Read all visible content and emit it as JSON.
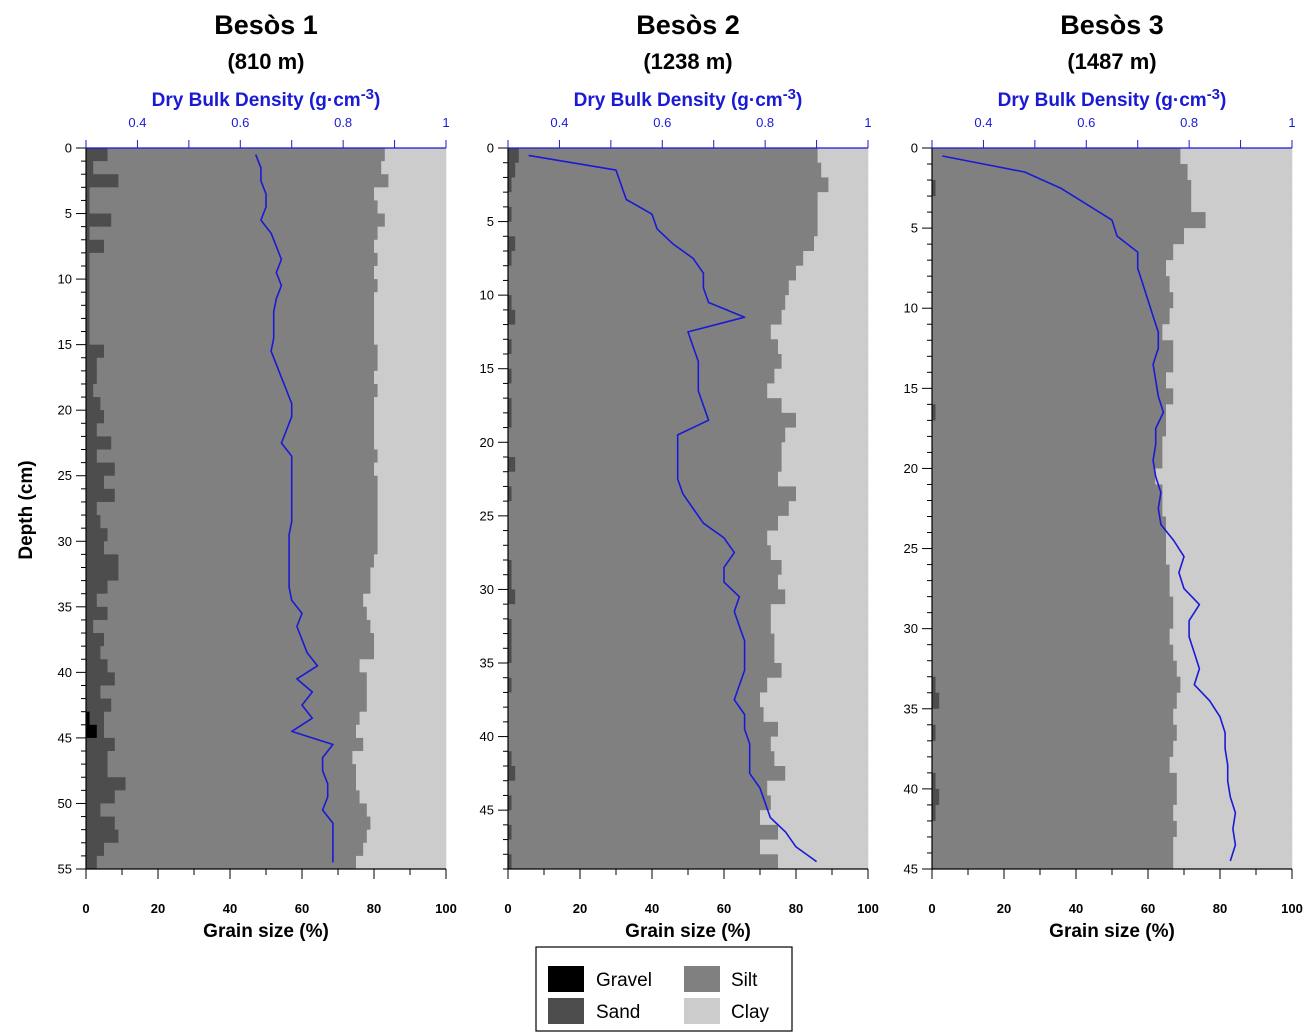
{
  "colors": {
    "gravel": "#000000",
    "sand": "#4d4d4d",
    "silt": "#808080",
    "clay": "#cccccc",
    "dbd": "#1a1ad6"
  },
  "legend": {
    "gravel": "Gravel",
    "sand": "Sand",
    "silt": "Silt",
    "clay": "Clay"
  },
  "chart_data": [
    {
      "type": "area",
      "title": "Besòs 1",
      "subtitle": "(810 m)",
      "ylabel": "Depth (cm)",
      "xlabel": "Grain size (%)",
      "x2label": "Dry Bulk Density (g·cm",
      "x2label_sup": "-3",
      "x2label_close": ")",
      "ylim": [
        0,
        55
      ],
      "xlim": [
        0,
        100
      ],
      "x2lim": [
        0.3,
        1.0
      ],
      "x2ticks": [
        0.4,
        0.6,
        0.8,
        1
      ],
      "x2ticklabels": [
        "0.4",
        "0.6",
        "0.8",
        "1"
      ],
      "xticks": [
        0,
        20,
        40,
        60,
        80,
        100
      ],
      "yticks": [
        0,
        5,
        10,
        15,
        20,
        25,
        30,
        35,
        40,
        45,
        50,
        55
      ],
      "grain_size": {
        "depth": [
          0.5,
          1.5,
          2.5,
          3.5,
          4.5,
          5.5,
          6.5,
          7.5,
          8.5,
          9.5,
          10.5,
          11.5,
          12.5,
          13.5,
          14.5,
          15.5,
          16.5,
          17.5,
          18.5,
          19.5,
          20.5,
          21.5,
          22.5,
          23.5,
          24.5,
          25.5,
          26.5,
          27.5,
          28.5,
          29.5,
          30.5,
          31.5,
          32.5,
          33.5,
          34.5,
          35.5,
          36.5,
          37.5,
          38.5,
          39.5,
          40.5,
          41.5,
          42.5,
          43.5,
          44.5,
          45.5,
          46.5,
          47.5,
          48.5,
          49.5,
          50.5,
          51.5,
          52.5,
          53.5,
          54.5
        ],
        "gravel": [
          0,
          0,
          0,
          0,
          0,
          0,
          0,
          0,
          0,
          0,
          0,
          0,
          0,
          0,
          0,
          0,
          0,
          0,
          0,
          0,
          0,
          0,
          0,
          0,
          0,
          0,
          0,
          0,
          0,
          0,
          0,
          0,
          0,
          0,
          0,
          0,
          0,
          0,
          0,
          0,
          0,
          0,
          0,
          1,
          3,
          0,
          0,
          0,
          0,
          0,
          0,
          0,
          0,
          0,
          0
        ],
        "sand": [
          6,
          2,
          9,
          1,
          1,
          7,
          1,
          5,
          1,
          1,
          1,
          1,
          1,
          1,
          1,
          5,
          3,
          3,
          2,
          4,
          5,
          3,
          7,
          3,
          8,
          5,
          8,
          3,
          4,
          6,
          5,
          9,
          9,
          6,
          3,
          6,
          2,
          5,
          4,
          6,
          8,
          4,
          7,
          4,
          2,
          8,
          6,
          6,
          11,
          8,
          4,
          8,
          9,
          5,
          3
        ],
        "silt": [
          77,
          80,
          75,
          79,
          80,
          76,
          80,
          75,
          80,
          79,
          80,
          79,
          79,
          79,
          79,
          76,
          78,
          77,
          79,
          76,
          75,
          77,
          73,
          78,
          72,
          76,
          73,
          78,
          77,
          75,
          76,
          71,
          70,
          73,
          74,
          72,
          77,
          75,
          76,
          70,
          70,
          74,
          71,
          71,
          70,
          69,
          68,
          69,
          64,
          68,
          74,
          71,
          69,
          72,
          72
        ],
        "clay": [
          17,
          18,
          16,
          20,
          19,
          17,
          19,
          20,
          19,
          20,
          19,
          20,
          20,
          20,
          20,
          19,
          19,
          20,
          19,
          20,
          20,
          20,
          20,
          19,
          20,
          19,
          19,
          19,
          19,
          19,
          19,
          20,
          21,
          21,
          23,
          22,
          21,
          20,
          20,
          24,
          22,
          22,
          22,
          24,
          25,
          23,
          26,
          25,
          25,
          24,
          22,
          21,
          22,
          23,
          25
        ]
      },
      "dry_bulk_density": {
        "depth": [
          0.5,
          1.5,
          2.5,
          3.5,
          4.5,
          5.5,
          6.5,
          7.5,
          8.5,
          9.5,
          10.5,
          11.5,
          12.5,
          13.5,
          14.5,
          15.5,
          16.5,
          17.5,
          18.5,
          19.5,
          20.5,
          21.5,
          22.5,
          23.5,
          24.5,
          25.5,
          26.5,
          27.5,
          28.5,
          29.5,
          30.5,
          31.5,
          32.5,
          33.5,
          34.5,
          35.5,
          36.5,
          37.5,
          38.5,
          39.5,
          40.5,
          41.5,
          42.5,
          43.5,
          44.5,
          45.5,
          46.5,
          47.5,
          48.5,
          49.5,
          50.5,
          51.5,
          52.5,
          53.5,
          54.5
        ],
        "values": [
          0.63,
          0.64,
          0.64,
          0.65,
          0.65,
          0.64,
          0.66,
          0.67,
          0.68,
          0.67,
          0.68,
          0.67,
          0.665,
          0.665,
          0.665,
          0.66,
          0.67,
          0.68,
          0.69,
          0.7,
          0.7,
          0.69,
          0.68,
          0.7,
          0.7,
          0.7,
          0.7,
          0.7,
          0.7,
          0.695,
          0.695,
          0.695,
          0.695,
          0.695,
          0.7,
          0.72,
          0.71,
          0.72,
          0.73,
          0.75,
          0.71,
          0.74,
          0.72,
          0.74,
          0.7,
          0.78,
          0.76,
          0.76,
          0.77,
          0.77,
          0.76,
          0.78,
          0.78,
          0.78,
          0.78
        ]
      }
    },
    {
      "type": "area",
      "title": "Besòs 2",
      "subtitle": "(1238 m)",
      "ylabel": "",
      "xlabel": "Grain size (%)",
      "x2label": "Dry Bulk Density (g·cm",
      "x2label_sup": "-3",
      "x2label_close": ")",
      "ylim": [
        0,
        49
      ],
      "xlim": [
        0,
        100
      ],
      "x2lim": [
        0.3,
        1.0
      ],
      "x2ticks": [
        0.4,
        0.6,
        0.8,
        1
      ],
      "x2ticklabels": [
        "0.4",
        "0.6",
        "0.8",
        "1"
      ],
      "xticks": [
        0,
        20,
        40,
        60,
        80,
        100
      ],
      "yticks": [
        0,
        5,
        10,
        15,
        20,
        25,
        30,
        35,
        40,
        45
      ],
      "grain_size": {
        "depth": [
          0.5,
          1.5,
          2.5,
          3.5,
          4.5,
          5.5,
          6.5,
          7.5,
          8.5,
          9.5,
          10.5,
          11.5,
          12.5,
          13.5,
          14.5,
          15.5,
          16.5,
          17.5,
          18.5,
          19.5,
          20.5,
          21.5,
          22.5,
          23.5,
          24.5,
          25.5,
          26.5,
          27.5,
          28.5,
          29.5,
          30.5,
          31.5,
          32.5,
          33.5,
          34.5,
          35.5,
          36.5,
          37.5,
          38.5,
          39.5,
          40.5,
          41.5,
          42.5,
          43.5,
          44.5,
          45.5,
          46.5,
          47.5,
          48.5
        ],
        "gravel": [
          0,
          0,
          0,
          0,
          0,
          0,
          0,
          0,
          0,
          0,
          0,
          0,
          0,
          0,
          0,
          0,
          0,
          0,
          0,
          0,
          0,
          0,
          0,
          0,
          0,
          0,
          0,
          0,
          0,
          0,
          0,
          0,
          0,
          0,
          0,
          0,
          0,
          0,
          0,
          0,
          0,
          0,
          0,
          0,
          0,
          0,
          0,
          0,
          0
        ],
        "sand": [
          3,
          2,
          1,
          0,
          1,
          0,
          2,
          1,
          0,
          0,
          1,
          2,
          0,
          1,
          0,
          1,
          0,
          1,
          1,
          0,
          0,
          2,
          0,
          1,
          0,
          0,
          0,
          0,
          1,
          1,
          2,
          0,
          1,
          1,
          1,
          0,
          1,
          0,
          0,
          0,
          0,
          1,
          2,
          0,
          1,
          0,
          1,
          0,
          1
        ],
        "silt": [
          83,
          85,
          88,
          86,
          85,
          86,
          83,
          81,
          80,
          78,
          76,
          74,
          73,
          74,
          76,
          73,
          72,
          75,
          79,
          77,
          76,
          74,
          75,
          79,
          78,
          75,
          72,
          73,
          75,
          74,
          75,
          73,
          72,
          73,
          73,
          76,
          71,
          70,
          71,
          75,
          73,
          73,
          75,
          72,
          72,
          70,
          74,
          70,
          74
        ],
        "clay": [
          14,
          13,
          11,
          14,
          14,
          14,
          15,
          18,
          20,
          22,
          23,
          24,
          27,
          25,
          24,
          26,
          28,
          24,
          20,
          23,
          24,
          24,
          25,
          20,
          22,
          25,
          28,
          27,
          24,
          25,
          23,
          27,
          27,
          26,
          26,
          24,
          28,
          30,
          29,
          25,
          27,
          26,
          23,
          28,
          27,
          30,
          25,
          30,
          25
        ]
      },
      "dry_bulk_density": {
        "depth": [
          0.5,
          1.5,
          2.5,
          3.5,
          4.5,
          5.5,
          6.5,
          7.5,
          8.5,
          9.5,
          10.5,
          11.5,
          12.5,
          13.5,
          14.5,
          15.5,
          16.5,
          17.5,
          18.5,
          19.5,
          20.5,
          21.5,
          22.5,
          23.5,
          24.5,
          25.5,
          26.5,
          27.5,
          28.5,
          29.5,
          30.5,
          31.5,
          32.5,
          33.5,
          34.5,
          35.5,
          36.5,
          37.5,
          38.5,
          39.5,
          40.5,
          41.5,
          42.5,
          43.5,
          44.5,
          45.5,
          46.5,
          47.5,
          48.5
        ],
        "values": [
          0.34,
          0.51,
          0.52,
          0.53,
          0.58,
          0.59,
          0.62,
          0.66,
          0.68,
          0.68,
          0.69,
          0.76,
          0.65,
          0.66,
          0.67,
          0.67,
          0.67,
          0.68,
          0.69,
          0.63,
          0.63,
          0.63,
          0.63,
          0.64,
          0.66,
          0.68,
          0.72,
          0.74,
          0.72,
          0.72,
          0.75,
          0.74,
          0.75,
          0.76,
          0.76,
          0.76,
          0.75,
          0.74,
          0.76,
          0.76,
          0.77,
          0.77,
          0.77,
          0.79,
          0.8,
          0.81,
          0.84,
          0.86,
          0.9
        ]
      }
    },
    {
      "type": "area",
      "title": "Besòs 3",
      "subtitle": "(1487 m)",
      "ylabel": "",
      "xlabel": "Grain size (%)",
      "x2label": "Dry Bulk Density (g·cm",
      "x2label_sup": "-3",
      "x2label_close": ")",
      "ylim": [
        0,
        45
      ],
      "xlim": [
        0,
        100
      ],
      "x2lim": [
        0.3,
        1.0
      ],
      "x2ticks": [
        0.4,
        0.6,
        0.8,
        1
      ],
      "x2ticklabels": [
        "0.4",
        "0.6",
        "0.8",
        "1"
      ],
      "xticks": [
        0,
        20,
        40,
        60,
        80,
        100
      ],
      "yticks": [
        0,
        5,
        10,
        15,
        20,
        25,
        30,
        35,
        40,
        45
      ],
      "grain_size": {
        "depth": [
          0.5,
          1.5,
          2.5,
          3.5,
          4.5,
          5.5,
          6.5,
          7.5,
          8.5,
          9.5,
          10.5,
          11.5,
          12.5,
          13.5,
          14.5,
          15.5,
          16.5,
          17.5,
          18.5,
          19.5,
          20.5,
          21.5,
          22.5,
          23.5,
          24.5,
          25.5,
          26.5,
          27.5,
          28.5,
          29.5,
          30.5,
          31.5,
          32.5,
          33.5,
          34.5,
          35.5,
          36.5,
          37.5,
          38.5,
          39.5,
          40.5,
          41.5,
          42.5,
          43.5,
          44.5
        ],
        "gravel": [
          0,
          0,
          0,
          0,
          0,
          0,
          0,
          0,
          0,
          0,
          0,
          0,
          0,
          0,
          0,
          0,
          0,
          0,
          0,
          0,
          0,
          0,
          0,
          0,
          0,
          0,
          0,
          0,
          0,
          0,
          0,
          0,
          0,
          0,
          0,
          0,
          0,
          0,
          0,
          0,
          0,
          0,
          0,
          0,
          0
        ],
        "sand": [
          0,
          0,
          1,
          0,
          0,
          0,
          0,
          0,
          0,
          0,
          0,
          0,
          0,
          0,
          0,
          0,
          1,
          0,
          0,
          0,
          0,
          0,
          0,
          0,
          0,
          0,
          0,
          0,
          0,
          0,
          0,
          0,
          0,
          1,
          2,
          0,
          1,
          0,
          0,
          1,
          2,
          1,
          0,
          0,
          0
        ],
        "silt": [
          69,
          71,
          71,
          72,
          76,
          70,
          67,
          65,
          66,
          67,
          66,
          64,
          67,
          67,
          65,
          67,
          64,
          65,
          64,
          64,
          62,
          64,
          64,
          65,
          65,
          65,
          66,
          66,
          67,
          67,
          66,
          67,
          68,
          68,
          66,
          67,
          67,
          67,
          66,
          67,
          66,
          66,
          68,
          67,
          67
        ],
        "clay": [
          31,
          29,
          28,
          28,
          24,
          30,
          33,
          35,
          34,
          33,
          34,
          36,
          33,
          33,
          35,
          33,
          35,
          35,
          36,
          36,
          38,
          36,
          36,
          35,
          35,
          35,
          34,
          34,
          33,
          33,
          34,
          33,
          32,
          31,
          32,
          33,
          32,
          33,
          34,
          32,
          32,
          33,
          32,
          33,
          33
        ]
      },
      "dry_bulk_density": {
        "depth": [
          0.5,
          1.5,
          2.5,
          3.5,
          4.5,
          5.5,
          6.5,
          7.5,
          8.5,
          9.5,
          10.5,
          11.5,
          12.5,
          13.5,
          14.5,
          15.5,
          16.5,
          17.5,
          18.5,
          19.5,
          20.5,
          21.5,
          22.5,
          23.5,
          24.5,
          25.5,
          26.5,
          27.5,
          28.5,
          29.5,
          30.5,
          31.5,
          32.5,
          33.5,
          34.5,
          35.5,
          36.5,
          37.5,
          38.5,
          39.5,
          40.5,
          41.5,
          42.5,
          43.5,
          44.5
        ],
        "values": [
          0.32,
          0.48,
          0.55,
          0.6,
          0.65,
          0.66,
          0.7,
          0.7,
          0.71,
          0.72,
          0.73,
          0.74,
          0.74,
          0.73,
          0.735,
          0.74,
          0.75,
          0.735,
          0.735,
          0.73,
          0.735,
          0.745,
          0.74,
          0.745,
          0.77,
          0.79,
          0.78,
          0.79,
          0.82,
          0.8,
          0.8,
          0.81,
          0.82,
          0.81,
          0.84,
          0.86,
          0.87,
          0.87,
          0.875,
          0.875,
          0.88,
          0.89,
          0.885,
          0.89,
          0.88
        ]
      }
    }
  ]
}
